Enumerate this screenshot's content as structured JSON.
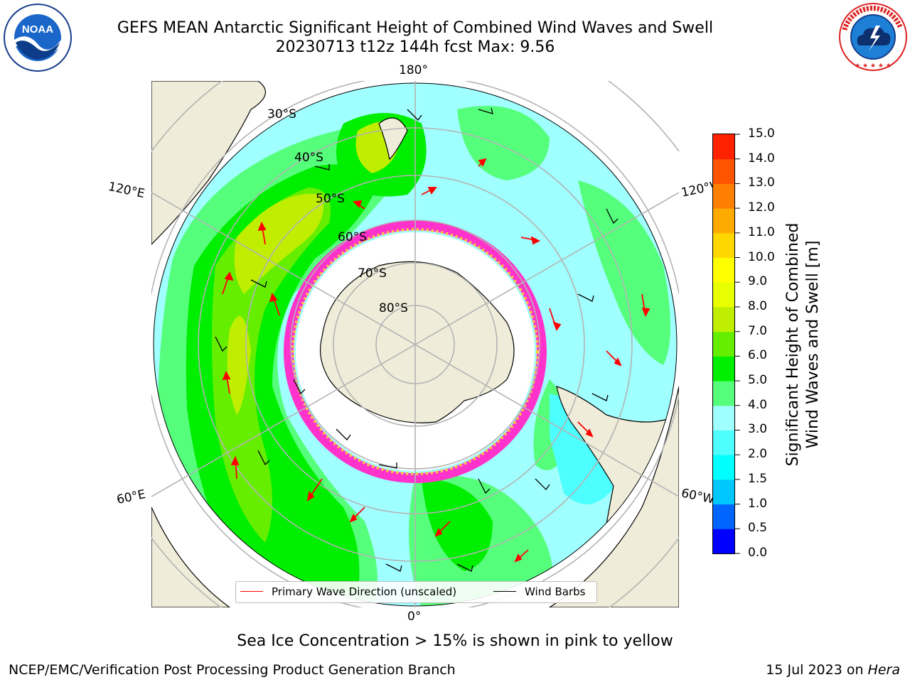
{
  "title": {
    "line1": "GEFS MEAN Antarctic Significant Height of Combined Wind Waves and Swell",
    "line2": "20230713 t12z 144h fcst   Max: 9.56"
  },
  "logos": {
    "left": {
      "name": "NOAA logo",
      "text": "NOAA",
      "ring_text": "NATIONAL OCEANIC AND ATMOSPHERIC ADMINISTRATION · U.S. DEPARTMENT OF COMMERCE"
    },
    "right": {
      "name": "National Weather Service logo",
      "ring_text": "NATIONAL WEATHER SERVICE"
    }
  },
  "map": {
    "projection": "south polar stereographic",
    "longitude_labels": [
      "180°",
      "120°E",
      "120°W",
      "60°E",
      "60°W",
      "0°"
    ],
    "latitude_labels": [
      "30°S",
      "40°S",
      "50°S",
      "60°S",
      "70°S",
      "80°S"
    ],
    "colors": {
      "land": "#efedd9",
      "coastline": "#000000",
      "grid": "#b3b3b3",
      "wave_arrow": "#ff0000",
      "wind_barb": "#000000",
      "sea_ice": "#ff33cc"
    }
  },
  "legend": {
    "items": [
      {
        "label": "Primary Wave Direction (unscaled)",
        "color": "#ff0000"
      },
      {
        "label": "Wind Barbs",
        "color": "#000000"
      }
    ]
  },
  "colorbar": {
    "label_line1": "Significant Height of Combined",
    "label_line2": "Wind Waves and Swell [m]",
    "ticks": [
      "0.0",
      "0.5",
      "1.0",
      "1.5",
      "2.0",
      "3.0",
      "4.0",
      "5.0",
      "6.0",
      "7.0",
      "8.0",
      "9.0",
      "10.0",
      "11.0",
      "12.0",
      "13.0",
      "14.0",
      "15.0"
    ],
    "colors": [
      "#0000ff",
      "#0064ff",
      "#00c8ff",
      "#00ffff",
      "#4dffff",
      "#a0ffff",
      "#55ff7c",
      "#00ee00",
      "#66ee00",
      "#bfee00",
      "#e8ff00",
      "#ffff00",
      "#ffd700",
      "#ffaa00",
      "#ff8000",
      "#ff5500",
      "#ff2200",
      "#ff0000"
    ]
  },
  "footer": {
    "caption": "Sea Ice Concentration > 15% is shown in pink to yellow",
    "credit_left": "NCEP/EMC/Verification Post Processing Product Generation Branch",
    "credit_right_prefix": "15 Jul 2023 on ",
    "credit_right_host": "Hera"
  },
  "chart_data": {
    "type": "heatmap",
    "title": "GEFS MEAN Antarctic Significant Height of Combined Wind Waves and Swell",
    "subtitle": "20230713 t12z 144h fcst   Max: 9.56",
    "variable": "Significant Height of Combined Wind Waves and Swell [m]",
    "max_value": 9.56,
    "colorbar_range": [
      0.0,
      15.0
    ],
    "colorbar_levels": [
      0.0,
      0.5,
      1.0,
      1.5,
      2.0,
      3.0,
      4.0,
      5.0,
      6.0,
      7.0,
      8.0,
      9.0,
      10.0,
      11.0,
      12.0,
      13.0,
      14.0,
      15.0
    ],
    "overlays": [
      "Primary Wave Direction (unscaled)",
      "Wind Barbs"
    ],
    "grid": true,
    "legend_placement": "bottom-center"
  }
}
